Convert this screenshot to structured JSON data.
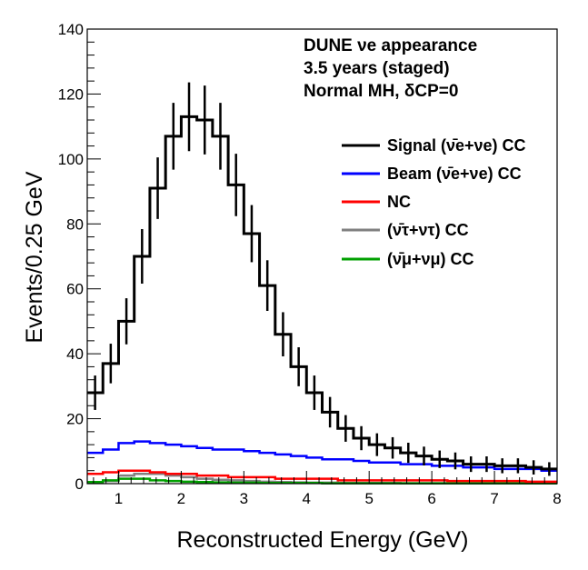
{
  "chart_data": {
    "type": "line",
    "title_lines": [
      "DUNE νe appearance",
      "3.5 years (staged)",
      "Normal MH, δCP=0"
    ],
    "xlabel": "Reconstructed Energy (GeV)",
    "ylabel": "Events/0.25 GeV",
    "xlim": [
      0.5,
      8
    ],
    "ylim": [
      0,
      140
    ],
    "x_ticks": [
      "1",
      "2",
      "3",
      "4",
      "5",
      "6",
      "7",
      "8"
    ],
    "y_ticks": [
      "0",
      "20",
      "40",
      "60",
      "80",
      "100",
      "120",
      "140"
    ],
    "bin_width": 0.25,
    "bin_low_edges": [
      0.5,
      0.75,
      1.0,
      1.25,
      1.5,
      1.75,
      2.0,
      2.25,
      2.5,
      2.75,
      3.0,
      3.25,
      3.5,
      3.75,
      4.0,
      4.25,
      4.5,
      4.75,
      5.0,
      5.25,
      5.5,
      5.75,
      6.0,
      6.25,
      6.5,
      6.75,
      7.0,
      7.25,
      7.5,
      7.75
    ],
    "legend": [
      {
        "name": "Signal (ν̄e+νe) CC",
        "color": "#000000"
      },
      {
        "name": "Beam (ν̄e+νe) CC",
        "color": "#0000ff"
      },
      {
        "name": "NC",
        "color": "#ff0000"
      },
      {
        "name": "(ν̄τ+ντ) CC",
        "color": "#808080"
      },
      {
        "name": "(ν̄μ+νμ) CC",
        "color": "#00a000"
      }
    ],
    "series": [
      {
        "name": "Signal (ν̄e+νe) CC",
        "color": "#000000",
        "values": [
          28,
          37,
          50,
          70,
          91,
          107,
          113,
          112,
          107,
          92,
          77,
          61,
          46,
          36,
          28,
          22,
          17,
          14,
          12,
          11,
          9.5,
          8.5,
          7.5,
          7,
          6,
          6,
          5.5,
          5.5,
          5,
          4.5
        ],
        "errors": [
          5.3,
          6.1,
          7.1,
          8.4,
          9.5,
          10.3,
          10.6,
          10.6,
          10.3,
          9.6,
          8.8,
          7.8,
          6.8,
          6.0,
          5.3,
          4.7,
          4.1,
          3.7,
          3.5,
          3.3,
          3.1,
          2.9,
          2.7,
          2.6,
          2.4,
          2.4,
          2.3,
          2.3,
          2.2,
          2.1
        ]
      },
      {
        "name": "Beam (ν̄e+νe) CC",
        "color": "#0000ff",
        "values": [
          9.5,
          10.5,
          12.5,
          13,
          12.5,
          12,
          11.5,
          11,
          10.5,
          10.5,
          10,
          9.5,
          9,
          8.5,
          8,
          7.5,
          7.5,
          7,
          6.5,
          6.5,
          6,
          6,
          5.5,
          5.5,
          5,
          5,
          4.5,
          4.5,
          4.5,
          4
        ]
      },
      {
        "name": "NC",
        "color": "#ff0000",
        "values": [
          3,
          3.5,
          4,
          4,
          3.5,
          3,
          3,
          2.5,
          2.5,
          2,
          2,
          2,
          1.5,
          1.5,
          1.5,
          1.5,
          1,
          1,
          1,
          1,
          1,
          1,
          1,
          0.8,
          0.8,
          0.8,
          0.8,
          0.8,
          0.6,
          0.6
        ]
      },
      {
        "name": "(ν̄τ+ντ) CC",
        "color": "#808080",
        "values": [
          0.3,
          0.8,
          2.5,
          3,
          3,
          2.5,
          2,
          1.5,
          1.2,
          1,
          0.8,
          0.6,
          0.5,
          0.4,
          0.3,
          0.3,
          0.2,
          0.2,
          0.2,
          0.2,
          0.1,
          0.1,
          0.1,
          0.1,
          0.1,
          0.1,
          0.1,
          0.1,
          0.1,
          0.1
        ]
      },
      {
        "name": "(ν̄μ+νμ) CC",
        "color": "#00a000",
        "values": [
          0.5,
          1,
          1.5,
          1.5,
          1,
          0.8,
          0.6,
          0.5,
          0.4,
          0.3,
          0.3,
          0.2,
          0.2,
          0.2,
          0.2,
          0.1,
          0.1,
          0.1,
          0.1,
          0.1,
          0.1,
          0.1,
          0.1,
          0.1,
          0.1,
          0.1,
          0.1,
          0.1,
          0.1,
          0.1
        ]
      }
    ]
  }
}
